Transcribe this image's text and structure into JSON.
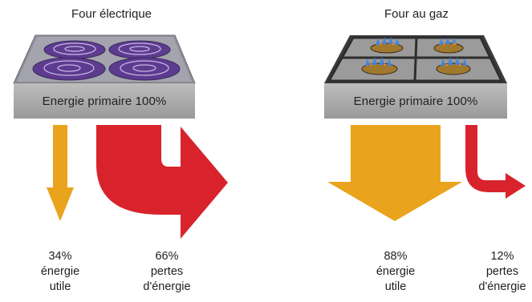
{
  "titles": {
    "electric": "Four électrique",
    "gas": "Four au gaz"
  },
  "primary_label": {
    "electric": "Energie primaire 100%",
    "gas": "Energie primaire 100%"
  },
  "flows": [
    {
      "id": "electric_useful",
      "percent": "34%",
      "line1": "énergie",
      "line2": "utile",
      "color": "#e9a31d"
    },
    {
      "id": "electric_losses",
      "percent": "66%",
      "line1": "pertes",
      "line2": "d'énergie",
      "color": "#d9232c"
    },
    {
      "id": "gas_useful",
      "percent": "88%",
      "line1": "énergie",
      "line2": "utile",
      "color": "#e9a31d"
    },
    {
      "id": "gas_losses",
      "percent": "12%",
      "line1": "pertes",
      "line2": "d'énergie",
      "color": "#d9232c"
    }
  ],
  "colors": {
    "useful": "#e9a31d",
    "losses": "#d9232c",
    "primary_box": "#aaaaaa"
  }
}
